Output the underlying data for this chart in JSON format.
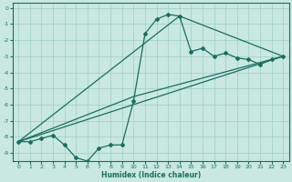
{
  "xlabel": "Humidex (Indice chaleur)",
  "bg_color": "#c8e8e0",
  "grid_color": "#9fcfc5",
  "line_color": "#1a6e5e",
  "xlim": [
    -0.5,
    23.5
  ],
  "ylim": [
    -9.5,
    0.3
  ],
  "yticks": [
    0,
    -1,
    -2,
    -3,
    -4,
    -5,
    -6,
    -7,
    -8,
    -9
  ],
  "xticks": [
    0,
    1,
    2,
    3,
    4,
    5,
    6,
    7,
    8,
    9,
    10,
    11,
    12,
    13,
    14,
    15,
    16,
    17,
    18,
    19,
    20,
    21,
    22,
    23
  ],
  "series1_x": [
    0,
    1,
    2,
    3,
    4,
    5,
    6,
    7,
    8,
    9,
    10,
    11,
    12,
    13,
    14,
    15,
    16,
    17,
    18,
    19,
    20,
    21,
    22,
    23
  ],
  "series1_y": [
    -8.3,
    -8.3,
    -8.1,
    -7.9,
    -8.5,
    -9.3,
    -9.5,
    -8.7,
    -8.5,
    -8.5,
    -5.8,
    -1.6,
    -0.7,
    -0.4,
    -0.5,
    -2.7,
    -2.5,
    -3.0,
    -2.8,
    -3.1,
    -3.2,
    -3.5,
    -3.2,
    -3.0
  ],
  "series2_x": [
    0,
    10,
    23
  ],
  "series2_y": [
    -8.3,
    -5.5,
    -3.0
  ],
  "series3_x": [
    0,
    23
  ],
  "series3_y": [
    -8.3,
    -3.0
  ],
  "series4_x": [
    0,
    14,
    23
  ],
  "series4_y": [
    -8.3,
    -0.5,
    -3.0
  ]
}
